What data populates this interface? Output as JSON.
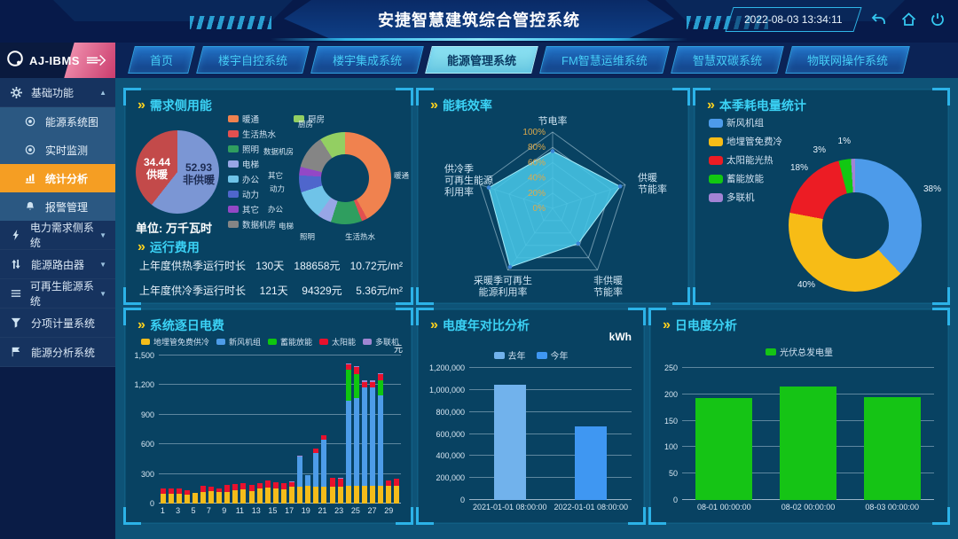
{
  "header": {
    "title": "安捷智慧建筑综合管控系统",
    "datetime": "2022-08-03 13:34:11",
    "logo_text": "AJ-IBMS",
    "icons": [
      "back-icon",
      "home-icon",
      "power-icon"
    ]
  },
  "nav": {
    "tabs": [
      {
        "label": "首页",
        "active": false
      },
      {
        "label": "楼宇自控系统",
        "active": false
      },
      {
        "label": "楼宇集成系统",
        "active": false
      },
      {
        "label": "能源管理系统",
        "active": true
      },
      {
        "label": "FM智慧运维系统",
        "active": false
      },
      {
        "label": "智慧双碳系统",
        "active": false
      },
      {
        "label": "物联网操作系统",
        "active": false
      }
    ]
  },
  "sidebar": {
    "items": [
      {
        "label": "基础功能",
        "icon": "gear-icon",
        "caret": "up",
        "children": [
          {
            "label": "能源系统图",
            "icon": "circle-icon",
            "active": false
          },
          {
            "label": "实时监测",
            "icon": "circle-icon",
            "active": false
          },
          {
            "label": "统计分析",
            "icon": "chart-icon",
            "active": true
          },
          {
            "label": "报警管理",
            "icon": "bell-icon",
            "active": false
          }
        ]
      },
      {
        "label": "电力需求侧系统",
        "icon": "lightning-icon",
        "caret": "down"
      },
      {
        "label": "能源路由器",
        "icon": "router-icon",
        "caret": "down"
      },
      {
        "label": "可再生能源系统",
        "icon": "list-icon",
        "caret": "down"
      },
      {
        "label": "分项计量系统",
        "icon": "filter-icon",
        "caret": null
      },
      {
        "label": "能源分析系统",
        "icon": "analysis-icon",
        "caret": null
      }
    ]
  },
  "panels": {
    "demand": {
      "title": "需求侧用能",
      "unit_label": "单位: 万千瓦时"
    },
    "cost": {
      "title": "运行费用",
      "rows": [
        {
          "label": "上年度供热季运行时长",
          "days": "130天",
          "amount": "188658元",
          "per": "10.72元/m²"
        },
        {
          "label": "上年度供冷季运行时长",
          "days": "121天",
          "amount": "94329元",
          "per": "5.36元/m²"
        }
      ]
    },
    "efficiency": {
      "title": "能耗效率"
    },
    "season": {
      "title": "本季耗电量统计"
    },
    "daily_cost": {
      "title": "系统逐日电费",
      "unit": "元"
    },
    "year_compare": {
      "title": "电度年对比分析",
      "unit": "kWh"
    },
    "daily_power": {
      "title": "日电度分析"
    }
  },
  "chart_data": [
    {
      "id": "demand-pie",
      "type": "pie",
      "title": "需求侧用能 供暖/非供暖",
      "unit": "万千瓦时",
      "slices": [
        {
          "label": "非供暖",
          "value": 52.93,
          "color": "#7b96d4"
        },
        {
          "label": "供暖",
          "value": 34.44,
          "color": "#c34a4a"
        }
      ]
    },
    {
      "id": "demand-donut",
      "type": "pie",
      "title": "需求侧用能分项",
      "slices": [
        {
          "label": "暖通",
          "value": 42,
          "color": "#f0824f"
        },
        {
          "label": "生活热水",
          "value": 2,
          "color": "#e25050"
        },
        {
          "label": "照明",
          "value": 11,
          "color": "#2f9e5f"
        },
        {
          "label": "电梯",
          "value": 5,
          "color": "#98a6e6"
        },
        {
          "label": "办公",
          "value": 10,
          "color": "#6fc3e8"
        },
        {
          "label": "动力",
          "value": 6,
          "color": "#4f66cc"
        },
        {
          "label": "其它",
          "value": 3,
          "color": "#9348c6"
        },
        {
          "label": "数据机房",
          "value": 12,
          "color": "#858585"
        },
        {
          "label": "厨房",
          "value": 9,
          "color": "#93cf62"
        }
      ]
    },
    {
      "id": "efficiency-radar",
      "type": "radar",
      "title": "能耗效率",
      "max": 100,
      "ticks": [
        "0%",
        "20%",
        "40%",
        "60%",
        "80%",
        "100%"
      ],
      "axes": [
        "节电率",
        "供暖节能率",
        "非供暖节能率",
        "采暖季可再生能源利用率",
        "供冷季可再生能源利用率"
      ],
      "axes_lines": [
        [
          "节电率"
        ],
        [
          "供暖",
          "节能率"
        ],
        [
          "非供暖",
          "节能率"
        ],
        [
          "采暖季可再生",
          "能源利用率"
        ],
        [
          "供冷季",
          "可再生能源",
          "利用率"
        ]
      ],
      "values": [
        75,
        93,
        57,
        95,
        88
      ],
      "fill_color": "#45c5e6"
    },
    {
      "id": "season-donut",
      "type": "pie",
      "title": "本季耗电量统计",
      "slices": [
        {
          "label": "新风机组",
          "value": 38,
          "color": "#4d9bea"
        },
        {
          "label": "地埋管免费冷",
          "value": 40,
          "color": "#f7bc16"
        },
        {
          "label": "太阳能光热",
          "value": 18,
          "color": "#ec1c24"
        },
        {
          "label": "蓄能放能",
          "value": 3,
          "color": "#12c812"
        },
        {
          "label": "多联机",
          "value": 1,
          "color": "#a283d4"
        }
      ]
    },
    {
      "id": "daily-cost",
      "type": "bar",
      "stacked": true,
      "title": "系统逐日电费",
      "ylabel": "元",
      "ylim": [
        0,
        1500
      ],
      "ytick_step": 300,
      "categories": [
        1,
        2,
        3,
        4,
        5,
        6,
        7,
        8,
        9,
        10,
        11,
        12,
        13,
        14,
        15,
        16,
        17,
        18,
        19,
        20,
        21,
        22,
        23,
        24,
        25,
        26,
        27,
        28,
        29,
        30
      ],
      "series": [
        {
          "name": "地埋管免费供冷",
          "color": "#f5bc1a",
          "values": [
            100,
            100,
            95,
            90,
            105,
            120,
            125,
            115,
            120,
            135,
            140,
            130,
            150,
            160,
            155,
            140,
            170,
            175,
            180,
            175,
            175,
            170,
            175,
            180,
            180,
            180,
            180,
            180,
            180,
            180
          ]
        },
        {
          "name": "新风机组",
          "color": "#4d9ce8",
          "values": [
            0,
            0,
            0,
            0,
            0,
            0,
            0,
            0,
            0,
            0,
            0,
            0,
            0,
            0,
            0,
            0,
            0,
            300,
            110,
            340,
            470,
            0,
            0,
            860,
            890,
            1000,
            1000,
            920,
            0,
            0
          ]
        },
        {
          "name": "蓄能放能",
          "color": "#0fc60f",
          "values": [
            0,
            0,
            0,
            0,
            0,
            0,
            0,
            0,
            0,
            0,
            0,
            0,
            0,
            0,
            0,
            0,
            0,
            0,
            0,
            0,
            0,
            0,
            0,
            320,
            240,
            0,
            0,
            150,
            0,
            0
          ]
        },
        {
          "name": "太阳能",
          "color": "#e8112d",
          "values": [
            50,
            55,
            60,
            45,
            0,
            62,
            48,
            40,
            68,
            65,
            70,
            55,
            55,
            75,
            60,
            70,
            45,
            0,
            0,
            40,
            45,
            90,
            80,
            50,
            70,
            55,
            55,
            60,
            55,
            70
          ]
        },
        {
          "name": "多联机",
          "color": "#9f86d2",
          "values": [
            0,
            0,
            0,
            0,
            0,
            0,
            0,
            0,
            0,
            0,
            0,
            0,
            0,
            0,
            0,
            0,
            8,
            10,
            0,
            0,
            0,
            0,
            5,
            12,
            12,
            10,
            10,
            12,
            0,
            0
          ]
        }
      ]
    },
    {
      "id": "year-compare",
      "type": "bar",
      "title": "电度年对比分析",
      "ylabel": "kWh",
      "ylim": [
        0,
        1200000
      ],
      "ytick_step": 200000,
      "categories": [
        "2021-01-01 08:00:00",
        "2022-01-01 08:00:00"
      ],
      "series": [
        {
          "name": "去年",
          "color": "#71b2ec",
          "values": [
            1050000,
            null
          ]
        },
        {
          "name": "今年",
          "color": "#3f97f2",
          "values": [
            null,
            670000
          ]
        }
      ]
    },
    {
      "id": "daily-power",
      "type": "bar",
      "title": "日电度分析",
      "legend": "光伏总发电量",
      "color": "#15c415",
      "ylim": [
        0,
        250
      ],
      "ytick_step": 50,
      "categories": [
        "08-01 00:00:00",
        "08-02 00:00:00",
        "08-03 00:00:00"
      ],
      "values": [
        193,
        215,
        195
      ]
    }
  ]
}
